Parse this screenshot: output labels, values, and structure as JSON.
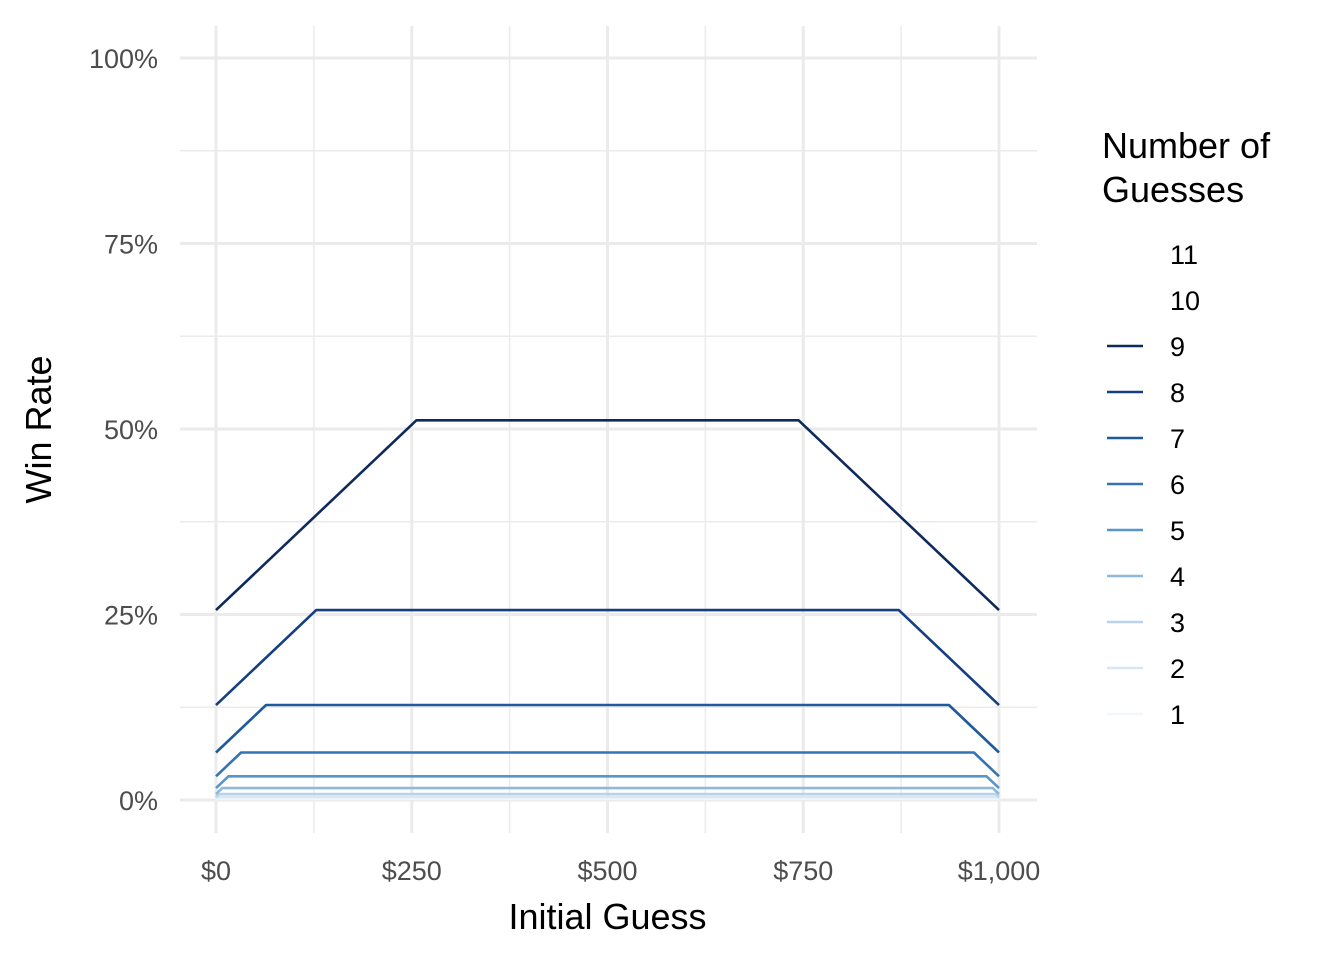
{
  "chart_data": {
    "type": "line",
    "title": "",
    "xlabel": "Initial Guess",
    "ylabel": "Win Rate",
    "xlim": [
      0,
      1000
    ],
    "ylim": [
      0,
      1
    ],
    "grid": true,
    "legend_placement": "right",
    "legend_title": "Number of Guesses",
    "legend_title_lines": [
      "Number of",
      "Guesses"
    ],
    "x_ticks": [
      {
        "value": 0,
        "label": "$0"
      },
      {
        "value": 250,
        "label": "$250"
      },
      {
        "value": 500,
        "label": "$500"
      },
      {
        "value": 750,
        "label": "$750"
      },
      {
        "value": 1000,
        "label": "$1,000"
      }
    ],
    "y_ticks": [
      {
        "value": 0,
        "label": "0%"
      },
      {
        "value": 0.25,
        "label": "25%"
      },
      {
        "value": 0.5,
        "label": "50%"
      },
      {
        "value": 0.75,
        "label": "75%"
      },
      {
        "value": 1,
        "label": "100%"
      }
    ],
    "series": [
      {
        "name": "11",
        "color": "#08306b",
        "visible": false,
        "x": [],
        "y": []
      },
      {
        "name": "10",
        "color": "#08306b",
        "visible": false,
        "x": [],
        "y": []
      },
      {
        "name": "9",
        "color": "#0e2a5c",
        "visible": true,
        "x": [
          0,
          256,
          744,
          1000
        ],
        "y": [
          0.2559,
          0.5117,
          0.5117,
          0.2559
        ]
      },
      {
        "name": "8",
        "color": "#153f80",
        "visible": true,
        "x": [
          0,
          128,
          872,
          1000
        ],
        "y": [
          0.1279,
          0.2559,
          0.2559,
          0.1279
        ]
      },
      {
        "name": "7",
        "color": "#1f5a9b",
        "visible": true,
        "x": [
          0,
          64,
          936,
          1000
        ],
        "y": [
          0.064,
          0.128,
          0.128,
          0.064
        ]
      },
      {
        "name": "6",
        "color": "#3474b4",
        "visible": true,
        "x": [
          0,
          32,
          968,
          1000
        ],
        "y": [
          0.032,
          0.064,
          0.064,
          0.032
        ]
      },
      {
        "name": "5",
        "color": "#5995c8",
        "visible": true,
        "x": [
          0,
          16,
          984,
          1000
        ],
        "y": [
          0.016,
          0.032,
          0.032,
          0.016
        ]
      },
      {
        "name": "4",
        "color": "#8fb8dc",
        "visible": true,
        "x": [
          0,
          8,
          992,
          1000
        ],
        "y": [
          0.008,
          0.016,
          0.016,
          0.008
        ]
      },
      {
        "name": "3",
        "color": "#b8d4ec",
        "visible": true,
        "x": [
          0,
          4,
          996,
          1000
        ],
        "y": [
          0.004,
          0.008,
          0.008,
          0.004
        ]
      },
      {
        "name": "2",
        "color": "#d8e7f5",
        "visible": true,
        "x": [
          0,
          2,
          998,
          1000
        ],
        "y": [
          0.002,
          0.004,
          0.004,
          0.002
        ]
      },
      {
        "name": "1",
        "color": "#f2f7fc",
        "visible": true,
        "x": [
          0,
          1,
          999,
          1000
        ],
        "y": [
          0.001,
          0.002,
          0.002,
          0.001
        ]
      }
    ]
  }
}
